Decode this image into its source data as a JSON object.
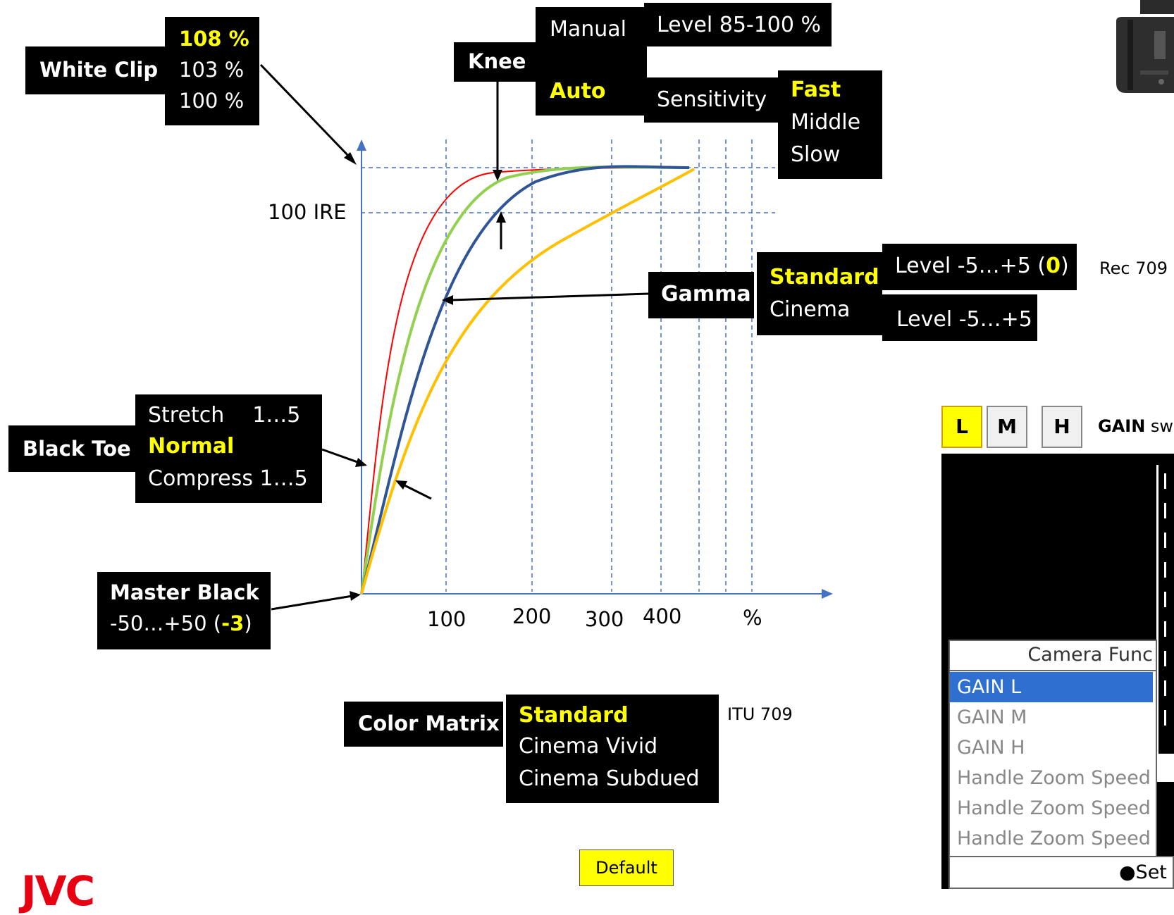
{
  "white_clip": {
    "title": "White Clip",
    "options": [
      "108 %",
      "103 %",
      "100 %"
    ],
    "selected": "108 %"
  },
  "knee": {
    "title": "Knee",
    "modes": [
      "Manual",
      "Auto"
    ],
    "selected": "Auto",
    "manual_level": "Level 85-100 %",
    "sensitivity_label": "Sensitivity",
    "sensitivity_options": [
      "Fast",
      "Middle",
      "Slow"
    ],
    "sensitivity_selected": "Fast"
  },
  "gamma": {
    "title": "Gamma",
    "options": [
      "Standard",
      "Cinema"
    ],
    "selected": "Standard",
    "standard_level_prefix": "Level -5…+5  (",
    "standard_level_value": "0",
    "standard_level_suffix": ")",
    "cinema_level": "Level -5…+5",
    "note": "Rec 709"
  },
  "black_toe": {
    "title": "Black Toe",
    "stretch_label": "Stretch",
    "stretch_range": "1…5",
    "normal": "Normal",
    "compress_label": "Compress",
    "compress_range": "1…5"
  },
  "master_black": {
    "title": "Master Black",
    "range": "-50…+50 (",
    "value": "-3",
    "suffix": ")"
  },
  "color_matrix": {
    "title": "Color Matrix",
    "options": [
      "Standard",
      "Cinema Vivid",
      "Cinema Subdued"
    ],
    "selected": "Standard",
    "note": "ITU 709"
  },
  "axis": {
    "y_label": "100 IRE",
    "x_ticks": [
      "100",
      "200",
      "300",
      "400",
      "%"
    ]
  },
  "gain_switch": {
    "buttons": [
      "L",
      "M",
      "H"
    ],
    "selected": "L",
    "label_bold": "GAIN",
    "label_rest": " sw"
  },
  "camera_menu": {
    "title": "Camera Func",
    "items": [
      "GAIN L",
      "GAIN M",
      "GAIN H",
      "Handle Zoom Speed",
      "Handle Zoom Speed",
      "Handle Zoom Speed"
    ],
    "selected": "GAIN L",
    "footer": "●Set"
  },
  "default_label": "Default",
  "logo": "JVC",
  "colors": {
    "red": "#ff0000",
    "green": "#92d050",
    "navy": "#2f5597",
    "orange": "#ffc000",
    "axis": "#4472c4",
    "highlight": "#ffff00"
  }
}
